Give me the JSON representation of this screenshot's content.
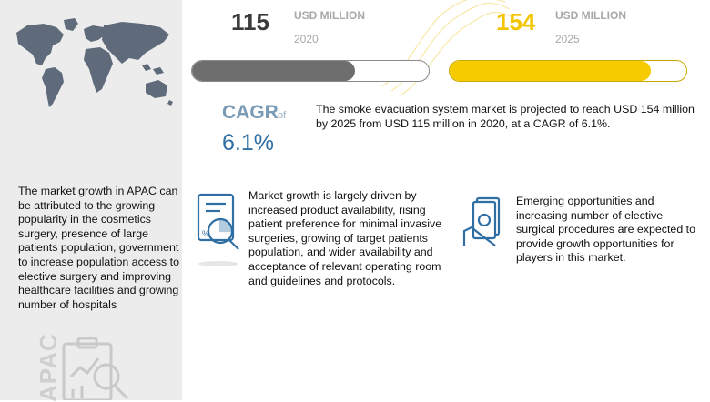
{
  "market": {
    "y2020": {
      "value": "115",
      "unit": "USD MILLION",
      "year": "2020",
      "bar_fill_fraction": 0.69
    },
    "y2025": {
      "value": "154",
      "unit": "USD MILLION",
      "year": "2025",
      "bar_fill_fraction": 0.85
    }
  },
  "cagr": {
    "label": "CAGR",
    "of": "of",
    "value": "6.1%"
  },
  "summary": "The smoke evacuation system market is projected to reach USD 154 million by 2025 from USD 115 million in 2020, at a CAGR of 6.1%.",
  "apac": {
    "text": "The market growth in APAC can be attributed to the growing popularity in the cosmetics surgery, presence of large patients population, government to increase population access to elective surgery and improving healthcare facilities and growing number of hospitals",
    "vertical_label": "APAC"
  },
  "drivers": {
    "text": "Market growth is largely driven by increased product availability, rising patient preference for minimal invasive surgeries, growing of target patients population, and wider availability and acceptance of relevant operating room and guidelines and protocols."
  },
  "opportunities": {
    "text": "Emerging opportunities and increasing number of elective surgical procedures are expected to provide growth opportunities for players in this market."
  },
  "colors": {
    "bar_2020": "#6e6e6e",
    "bar_2025": "#f6cb00",
    "accent_blue": "#2f6fa3",
    "panel_gray": "#ececec"
  }
}
